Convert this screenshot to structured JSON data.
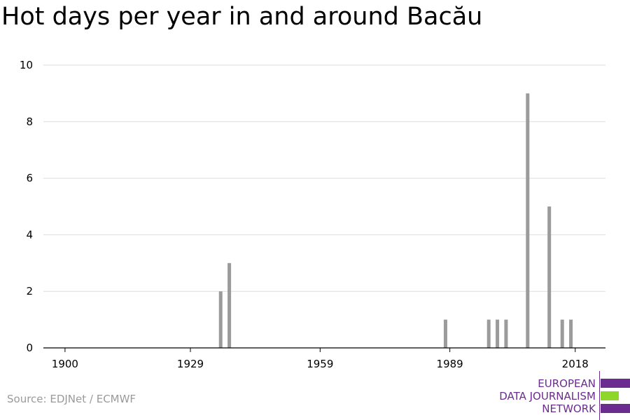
{
  "chart_data": {
    "type": "bar",
    "title": "Hot days per year in and around Bacău",
    "xlabel": "",
    "ylabel": "",
    "x_ticks": [
      "1900",
      "1929",
      "1959",
      "1989",
      "2018"
    ],
    "y_ticks": [
      0,
      2,
      4,
      6,
      8,
      10
    ],
    "xlim": [
      1895,
      2025
    ],
    "ylim": [
      0,
      10
    ],
    "grid": true,
    "bar_color": "#9b9b9b",
    "x": [
      1936,
      1938,
      1988,
      1998,
      2000,
      2002,
      2007,
      2012,
      2015,
      2017
    ],
    "values": [
      2,
      3,
      1,
      1,
      1,
      1,
      9,
      5,
      1,
      1
    ]
  },
  "source": "Source: EDJNet / ECMWF",
  "logo": {
    "line1": "EUROPEAN",
    "line2": "DATA JOURNALISM",
    "line3": "NETWORK",
    "purple": "#6a2c8e",
    "green": "#8fd62b"
  }
}
